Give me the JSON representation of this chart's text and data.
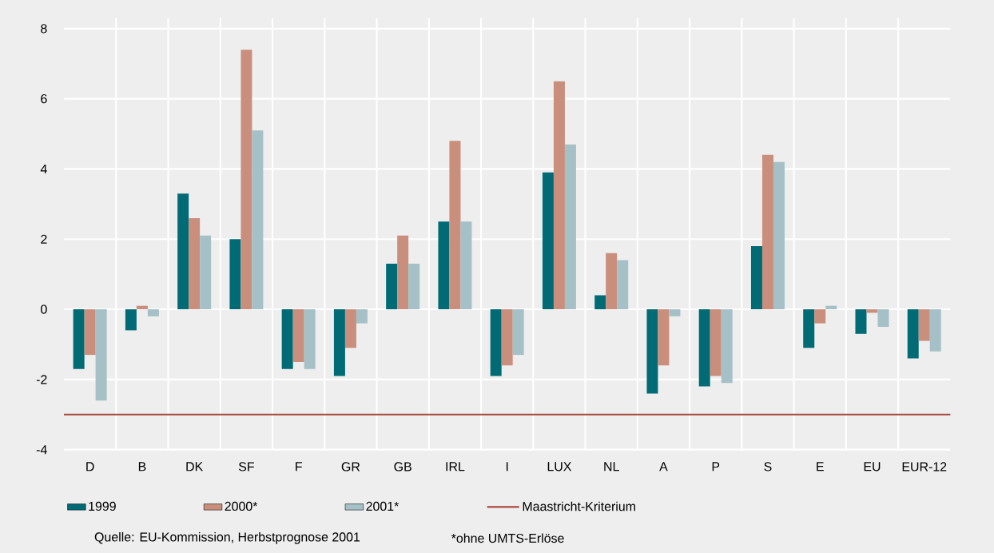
{
  "chart_data": {
    "type": "bar",
    "categories": [
      "D",
      "B",
      "DK",
      "SF",
      "F",
      "GR",
      "GB",
      "IRL",
      "I",
      "LUX",
      "NL",
      "A",
      "P",
      "S",
      "E",
      "EU",
      "EUR-12"
    ],
    "series": [
      {
        "name": "1999",
        "color": "#006b75",
        "values": [
          -1.7,
          -0.6,
          3.3,
          2.0,
          -1.7,
          -1.9,
          1.3,
          2.5,
          -1.9,
          3.9,
          0.4,
          -2.4,
          -2.2,
          1.8,
          -1.1,
          -0.7,
          -1.4
        ]
      },
      {
        "name": "2000*",
        "color": "#c98f7c",
        "values": [
          -1.3,
          0.1,
          2.6,
          7.4,
          -1.5,
          -1.1,
          2.1,
          4.8,
          -1.6,
          6.5,
          1.6,
          -1.6,
          -1.9,
          4.4,
          -0.4,
          -0.1,
          -0.9
        ]
      },
      {
        "name": "2001*",
        "color": "#a5c1c7",
        "values": [
          -2.6,
          -0.2,
          2.1,
          5.1,
          -1.7,
          -0.4,
          1.3,
          2.5,
          -1.3,
          4.7,
          1.4,
          -0.2,
          -2.1,
          4.2,
          0.1,
          -0.5,
          -1.2
        ]
      }
    ],
    "ylim": [
      -4,
      8.3
    ],
    "yticks": [
      -4,
      -2,
      0,
      2,
      4,
      6,
      8
    ],
    "grid": true,
    "legend": "bottom",
    "ref_lines": [
      {
        "axis": "y",
        "value": -3,
        "label": "Maastricht-Kriterium",
        "color": "#a84a3e"
      }
    ],
    "annotations": [
      "Quelle: EU-Kommission, Herbstprognose 2001",
      "*ohne UMTS-Erlöse"
    ]
  }
}
